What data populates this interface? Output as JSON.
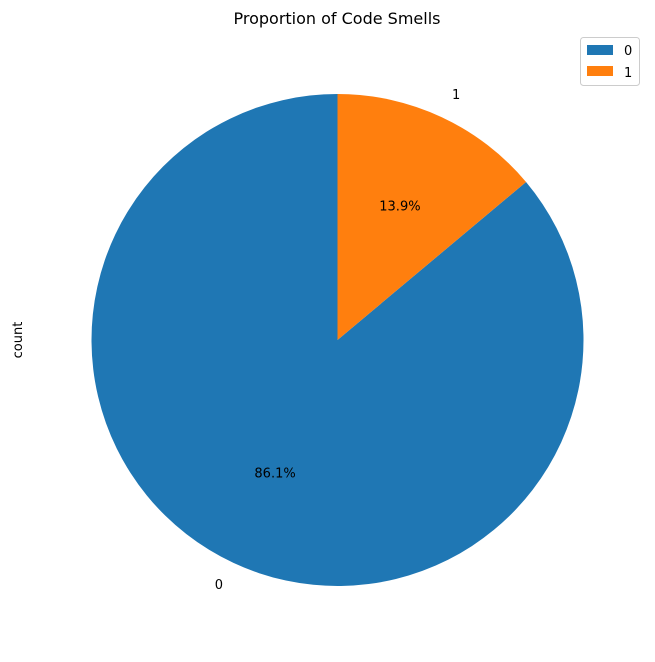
{
  "chart_data": {
    "type": "pie",
    "title": "Proportion of Code Smells",
    "ylabel": "count",
    "categories": [
      "0",
      "1"
    ],
    "values": [
      86.1,
      13.9
    ],
    "value_labels": [
      "86.1%",
      "13.9%"
    ],
    "colors": [
      "#1f77b4",
      "#ff7f0e"
    ],
    "start_angle_deg": 90,
    "direction": "counterclockwise",
    "legend": {
      "position": "top-right",
      "entries": [
        "0",
        "1"
      ]
    }
  }
}
